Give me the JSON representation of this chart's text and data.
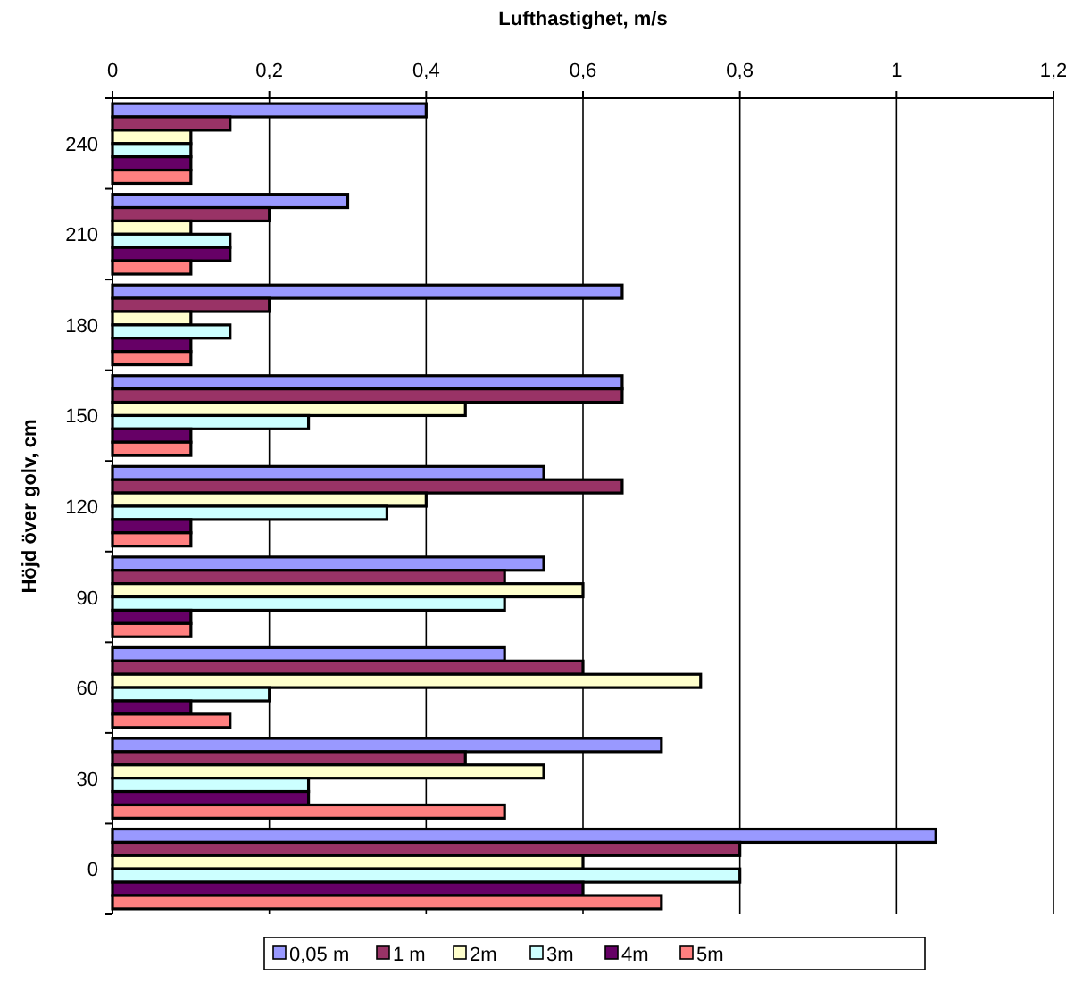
{
  "chart_data": {
    "type": "bar",
    "orientation": "horizontal",
    "xlabel": "Lufthastighet, m/s",
    "ylabel": "Höjd över golv, cm",
    "categories": [
      "240",
      "210",
      "180",
      "150",
      "120",
      "90",
      "60",
      "30",
      "0"
    ],
    "xlim": [
      0,
      1.2
    ],
    "xticks": [
      0,
      {
        "value": 0.2,
        "label": "0,2"
      },
      {
        "value": 0.4,
        "label": "0,4"
      },
      {
        "value": 0.6,
        "label": "0,6"
      },
      {
        "value": 0.8,
        "label": "0,8"
      },
      1,
      {
        "value": 1.2,
        "label": "1,2"
      }
    ],
    "grid": "x",
    "legend": "bottom",
    "series": [
      {
        "name": "0,05 m",
        "color": "#9999ff",
        "values": [
          0.4,
          0.3,
          0.65,
          0.65,
          0.55,
          0.55,
          0.5,
          0.7,
          1.05
        ]
      },
      {
        "name": "1 m",
        "color": "#993366",
        "values": [
          0.15,
          0.2,
          0.2,
          0.65,
          0.65,
          0.5,
          0.6,
          0.45,
          0.8
        ]
      },
      {
        "name": "2m",
        "color": "#ffffcc",
        "values": [
          0.1,
          0.1,
          0.1,
          0.45,
          0.4,
          0.6,
          0.75,
          0.55,
          0.6
        ]
      },
      {
        "name": "3m",
        "color": "#ccffff",
        "values": [
          0.1,
          0.15,
          0.15,
          0.25,
          0.35,
          0.5,
          0.2,
          0.25,
          0.8
        ]
      },
      {
        "name": "4m",
        "color": "#660066",
        "values": [
          0.1,
          0.15,
          0.1,
          0.1,
          0.1,
          0.1,
          0.1,
          0.25,
          0.6
        ]
      },
      {
        "name": "5m",
        "color": "#ff8080",
        "values": [
          0.1,
          0.1,
          0.1,
          0.1,
          0.1,
          0.1,
          0.15,
          0.5,
          0.7
        ]
      }
    ]
  }
}
